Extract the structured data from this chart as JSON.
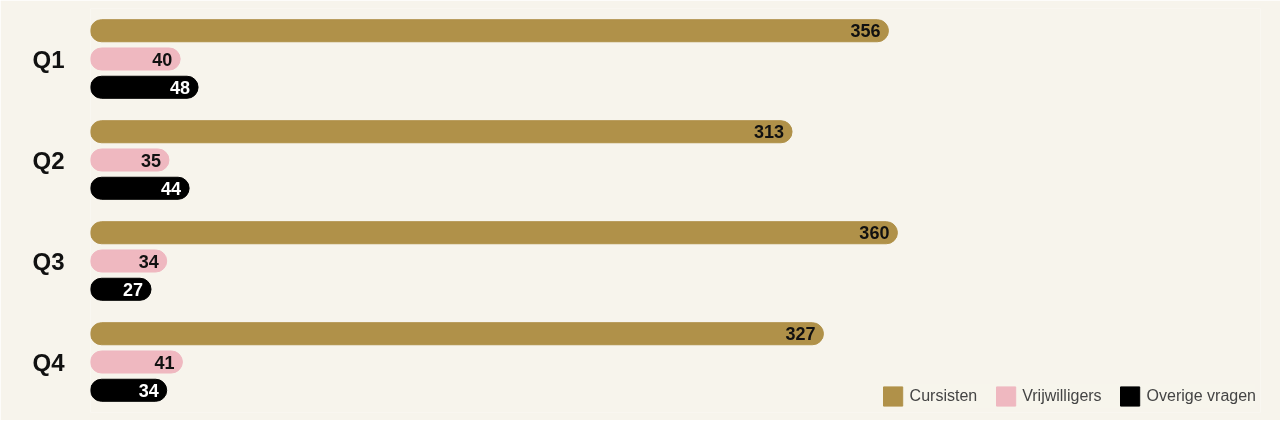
{
  "chart_data": {
    "type": "bar",
    "orientation": "horizontal",
    "categories": [
      "Q1",
      "Q2",
      "Q3",
      "Q4"
    ],
    "tick_labels": "y",
    "grid": false,
    "data_labels": true,
    "legend": "bottom right",
    "series": [
      {
        "name": "Cursisten",
        "color": "#b09149",
        "values": [
          356,
          313,
          360,
          327
        ]
      },
      {
        "name": "Vrijwilligers",
        "color": "#efb8c0",
        "values": [
          40,
          35,
          34,
          41
        ]
      },
      {
        "name": "Overige vragen",
        "color": "#000000",
        "values": [
          48,
          44,
          27,
          34
        ]
      }
    ]
  }
}
